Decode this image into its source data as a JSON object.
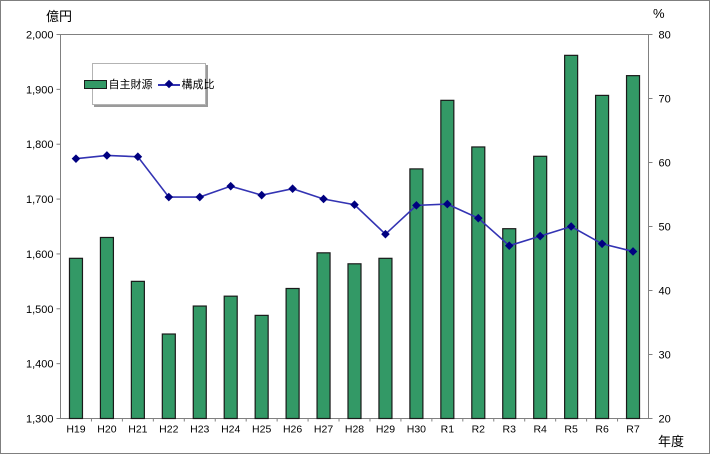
{
  "page": {
    "left_axis_unit": "億円",
    "right_axis_unit": "%",
    "x_axis_unit": "年度"
  },
  "legend": {
    "bar_label": "自主財源",
    "line_label": "構成比"
  },
  "colors": {
    "bar_fill": "#339966",
    "bar_border": "#1a1a1a",
    "line": "#3333b3",
    "marker": "#000080",
    "axis": "#808080",
    "text": "#000000"
  },
  "chart_data": {
    "type": "combo-bar-line",
    "categories": [
      "H19",
      "H20",
      "H21",
      "H22",
      "H23",
      "H24",
      "H25",
      "H26",
      "H27",
      "H28",
      "H29",
      "H30",
      "R1",
      "R2",
      "R3",
      "R4",
      "R5",
      "R6",
      "R7"
    ],
    "series": [
      {
        "name": "自主財源",
        "type": "bar",
        "axis": "left",
        "unit": "億円",
        "values": [
          1592,
          1630,
          1550,
          1454,
          1505,
          1523,
          1488,
          1537,
          1602,
          1582,
          1592,
          1755,
          1880,
          1795,
          1646,
          1778,
          1962,
          1889,
          1925
        ]
      },
      {
        "name": "構成比",
        "type": "line",
        "axis": "right",
        "unit": "%",
        "values": [
          60.6,
          61.1,
          60.9,
          54.6,
          54.6,
          56.3,
          54.9,
          55.9,
          54.3,
          53.4,
          48.8,
          53.3,
          53.5,
          51.3,
          47.0,
          48.5,
          50.0,
          47.3,
          46.1
        ]
      }
    ],
    "left_axis": {
      "label": "億円",
      "min": 1300,
      "max": 2000,
      "step": 100,
      "tick_labels": [
        "2,000",
        "1,900",
        "1,800",
        "1,700",
        "1,600",
        "1,500",
        "1,400",
        "1,300"
      ]
    },
    "right_axis": {
      "label": "%",
      "min": 20,
      "max": 80,
      "step": 10,
      "tick_labels": [
        "80",
        "70",
        "60",
        "50",
        "40",
        "30",
        "20"
      ]
    },
    "x_axis": {
      "label": "年度"
    },
    "legend_position": "inside-top-left",
    "grid": false,
    "plot_background": "#ffffff"
  }
}
